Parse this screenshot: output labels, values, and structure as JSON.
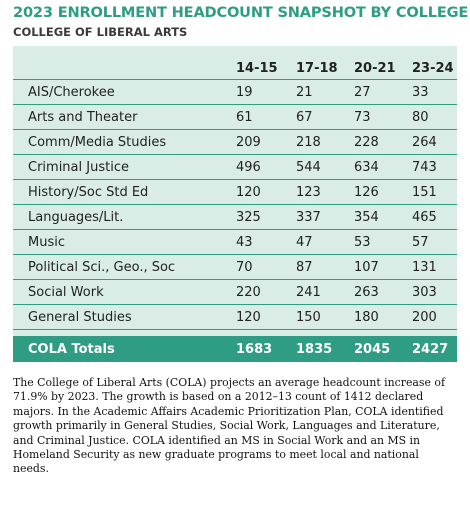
{
  "title": "2023 ENROLLMENT HEADCOUNT SNAPSHOT BY COLLEGE",
  "subtitle": "COLLEGE OF LIBERAL ARTS",
  "table": {
    "columns": [
      "14-15",
      "17-18",
      "20-21",
      "23-24"
    ],
    "rows": [
      {
        "dept": "AIS/Cherokee",
        "values": [
          "19",
          "21",
          "27",
          "33"
        ]
      },
      {
        "dept": "Arts and Theater",
        "values": [
          "61",
          "67",
          "73",
          "80"
        ]
      },
      {
        "dept": "Comm/Media Studies",
        "values": [
          "209",
          "218",
          "228",
          "264"
        ]
      },
      {
        "dept": "Criminal Justice",
        "values": [
          "496",
          "544",
          "634",
          "743"
        ]
      },
      {
        "dept": "History/Soc Std Ed",
        "values": [
          "120",
          "123",
          "126",
          "151"
        ]
      },
      {
        "dept": "Languages/Lit.",
        "values": [
          "325",
          "337",
          "354",
          "465"
        ]
      },
      {
        "dept": "Music",
        "values": [
          "43",
          "47",
          "53",
          "57"
        ]
      },
      {
        "dept": "Political Sci., Geo., Soc",
        "values": [
          "70",
          "87",
          "107",
          "131"
        ]
      },
      {
        "dept": "Social Work",
        "values": [
          "220",
          "241",
          "263",
          "303"
        ]
      },
      {
        "dept": "General Studies",
        "values": [
          "120",
          "150",
          "180",
          "200"
        ]
      }
    ],
    "totals": {
      "label": "COLA Totals",
      "values": [
        "1683",
        "1835",
        "2045",
        "2427"
      ]
    }
  },
  "description": "The College of Liberal Arts (COLA) projects an average headcount increase of 71.9% by 2023. The growth is based on a 2012–13 count of 1412 declared majors. In the Academic Affairs Academic Prioritization Plan, COLA identified growth primarily in General Studies, Social Work, Languages and Literature, and Criminal Justice. COLA identified an MS in Social Work and an MS in Homeland Security as new graduate programs to meet local and national needs.",
  "colors": {
    "accent": "#2e9d84",
    "panel": "#d9ede6"
  }
}
